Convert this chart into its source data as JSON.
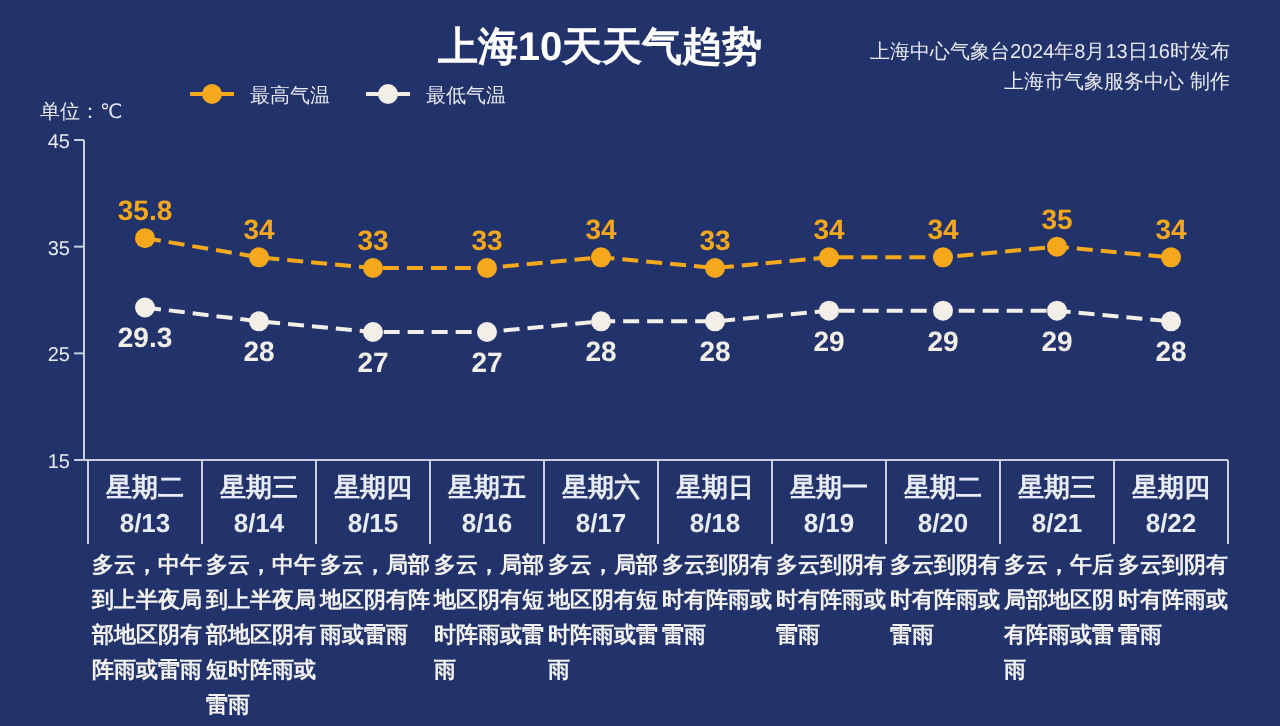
{
  "chart_data": {
    "type": "line",
    "title": "上海10天天气趋势",
    "ylabel": "单位：℃",
    "categories": [
      "星期二\n8/13",
      "星期三\n8/14",
      "星期四\n8/15",
      "星期五\n8/16",
      "星期六\n8/17",
      "星期日\n8/18",
      "星期一\n8/19",
      "星期二\n8/20",
      "星期三\n8/21",
      "星期四\n8/22"
    ],
    "series": [
      {
        "name": "最高气温",
        "color": "#f5a81c",
        "values": [
          35.8,
          34,
          33,
          33,
          34,
          33,
          34,
          34,
          35,
          34
        ]
      },
      {
        "name": "最低气温",
        "color": "#f2eee8",
        "values": [
          29.3,
          28,
          27,
          27,
          28,
          28,
          29,
          29,
          29,
          28
        ]
      }
    ],
    "ylim": [
      15,
      45
    ],
    "yticks": [
      15,
      25,
      35,
      45
    ],
    "grid": false,
    "legend": "top left",
    "marker": "circle",
    "line_style": "dashed",
    "data_labels": true,
    "annotations": [
      "上海中心气象台2024年8月13日16时发布",
      "上海市气象服务中心 制作",
      "多云，中午到上半夜局部地区阴有阵雨或雷雨",
      "多云，中午到上半夜局部地区阴有短时阵雨或雷雨",
      "多云，局部地区阴有阵雨或雷雨",
      "多云，局部地区阴有短时阵雨或雷雨",
      "多云，局部地区阴有短时阵雨或雷雨",
      "多云到阴有时有阵雨或雷雨",
      "多云到阴有时有阵雨或雷雨",
      "多云到阴有时有阵雨或雷雨",
      "多云，午后局部地区阴有阵雨或雷雨",
      "多云到阴有时有阵雨或雷雨"
    ]
  }
}
